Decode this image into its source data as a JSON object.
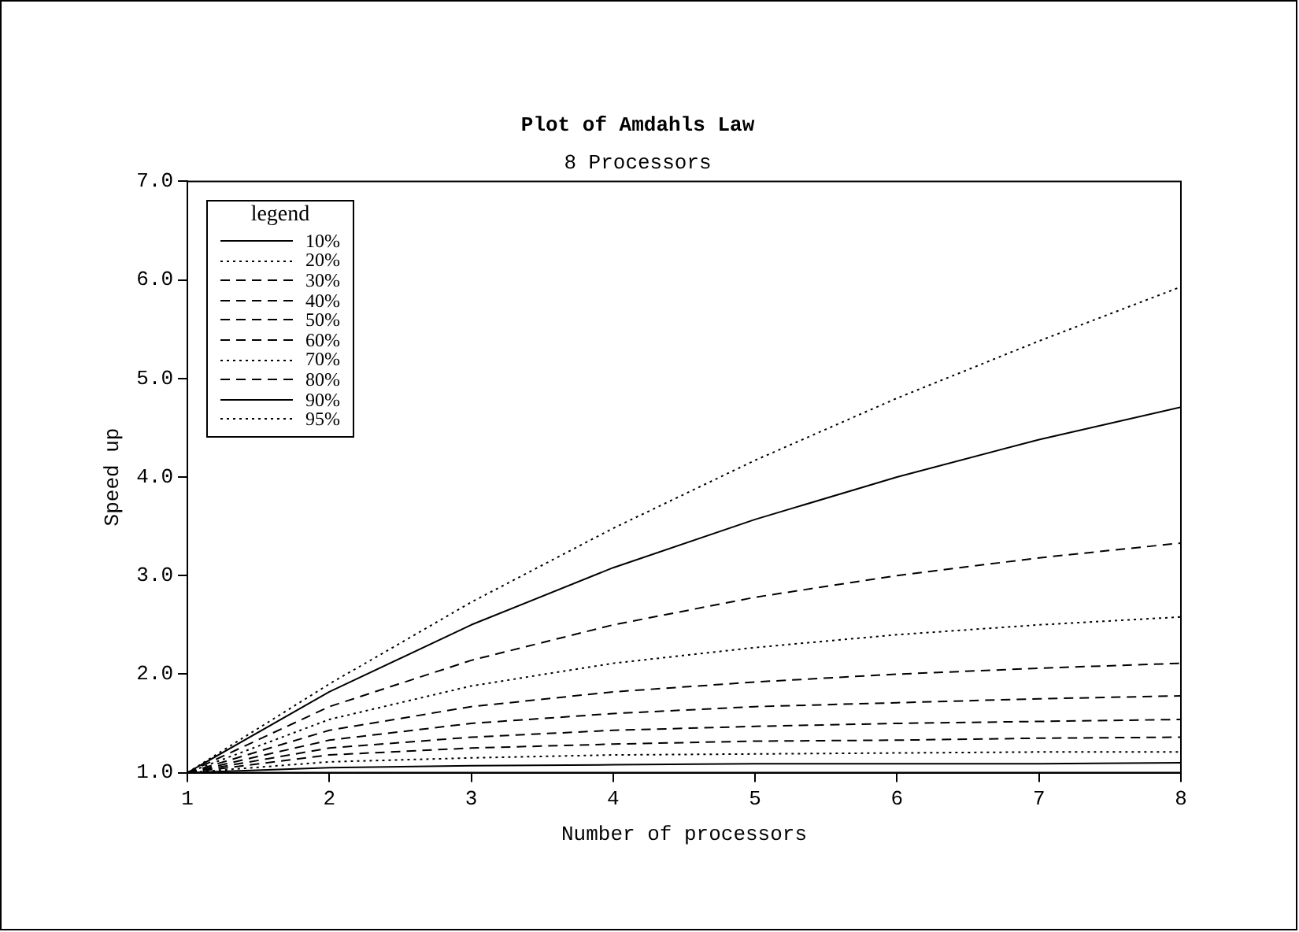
{
  "chart_data": {
    "type": "line",
    "title": "Plot of Amdahls Law",
    "subtitle": "8 Processors",
    "xlabel": "Number of processors",
    "ylabel": "Speed up",
    "legend_title": "legend",
    "legend": "top left",
    "grid": false,
    "marker": "none",
    "x": [
      1,
      2,
      3,
      4,
      5,
      6,
      7,
      8
    ],
    "xlim": [
      1,
      8
    ],
    "xticks": [
      1,
      2,
      3,
      4,
      5,
      6,
      7,
      8
    ],
    "ylim": [
      1,
      7
    ],
    "yticks": [
      {
        "value": 1,
        "label": "1.0"
      },
      {
        "value": 2,
        "label": "2.0"
      },
      {
        "value": 3,
        "label": "3.0"
      },
      {
        "value": 4,
        "label": "4.0"
      },
      {
        "value": 5,
        "label": "5.0"
      },
      {
        "value": 6,
        "label": "6.0"
      },
      {
        "value": 7,
        "label": "7.0"
      }
    ],
    "series": [
      {
        "name": "10%",
        "color": "#000000",
        "line_style": "solid",
        "values": [
          1,
          1.05,
          1.07,
          1.08,
          1.09,
          1.09,
          1.09,
          1.1
        ]
      },
      {
        "name": "20%",
        "color": "#000000",
        "line_style": "dotted",
        "values": [
          1,
          1.11,
          1.15,
          1.18,
          1.19,
          1.2,
          1.21,
          1.21
        ]
      },
      {
        "name": "30%",
        "color": "#000000",
        "line_style": "dashed",
        "values": [
          1,
          1.18,
          1.25,
          1.29,
          1.32,
          1.33,
          1.35,
          1.36
        ]
      },
      {
        "name": "40%",
        "color": "#000000",
        "line_style": "dashed",
        "values": [
          1,
          1.25,
          1.36,
          1.43,
          1.47,
          1.5,
          1.52,
          1.54
        ]
      },
      {
        "name": "50%",
        "color": "#000000",
        "line_style": "dashed",
        "values": [
          1,
          1.33,
          1.5,
          1.6,
          1.67,
          1.71,
          1.75,
          1.78
        ]
      },
      {
        "name": "60%",
        "color": "#000000",
        "line_style": "dashed",
        "values": [
          1,
          1.43,
          1.67,
          1.82,
          1.92,
          2.0,
          2.06,
          2.11
        ]
      },
      {
        "name": "70%",
        "color": "#000000",
        "line_style": "dotted",
        "values": [
          1,
          1.54,
          1.88,
          2.11,
          2.27,
          2.4,
          2.5,
          2.58
        ]
      },
      {
        "name": "80%",
        "color": "#000000",
        "line_style": "dashed",
        "values": [
          1,
          1.67,
          2.14,
          2.5,
          2.78,
          3.0,
          3.18,
          3.33
        ]
      },
      {
        "name": "90%",
        "color": "#000000",
        "line_style": "solid",
        "values": [
          1,
          1.82,
          2.5,
          3.08,
          3.57,
          4.0,
          4.38,
          4.71
        ]
      },
      {
        "name": "95%",
        "color": "#000000",
        "line_style": "dotted",
        "values": [
          1,
          1.9,
          2.73,
          3.48,
          4.17,
          4.8,
          5.38,
          5.93
        ]
      }
    ]
  }
}
